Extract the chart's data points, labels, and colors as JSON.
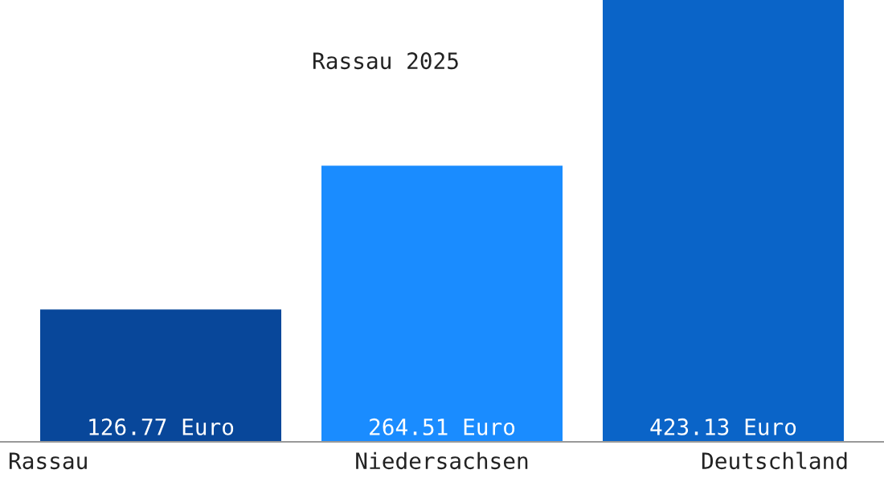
{
  "chart_data": {
    "type": "bar",
    "title": "Rassau 2025",
    "categories": [
      "Rassau",
      "Niedersachsen",
      "Deutschland"
    ],
    "values": [
      126.77,
      264.51,
      423.13
    ],
    "colors": [
      "#08479a",
      "#1a8cff",
      "#0a64c8"
    ],
    "value_labels": [
      "126.77 Euro",
      "264.51 Euro",
      "423.13 Euro"
    ]
  }
}
